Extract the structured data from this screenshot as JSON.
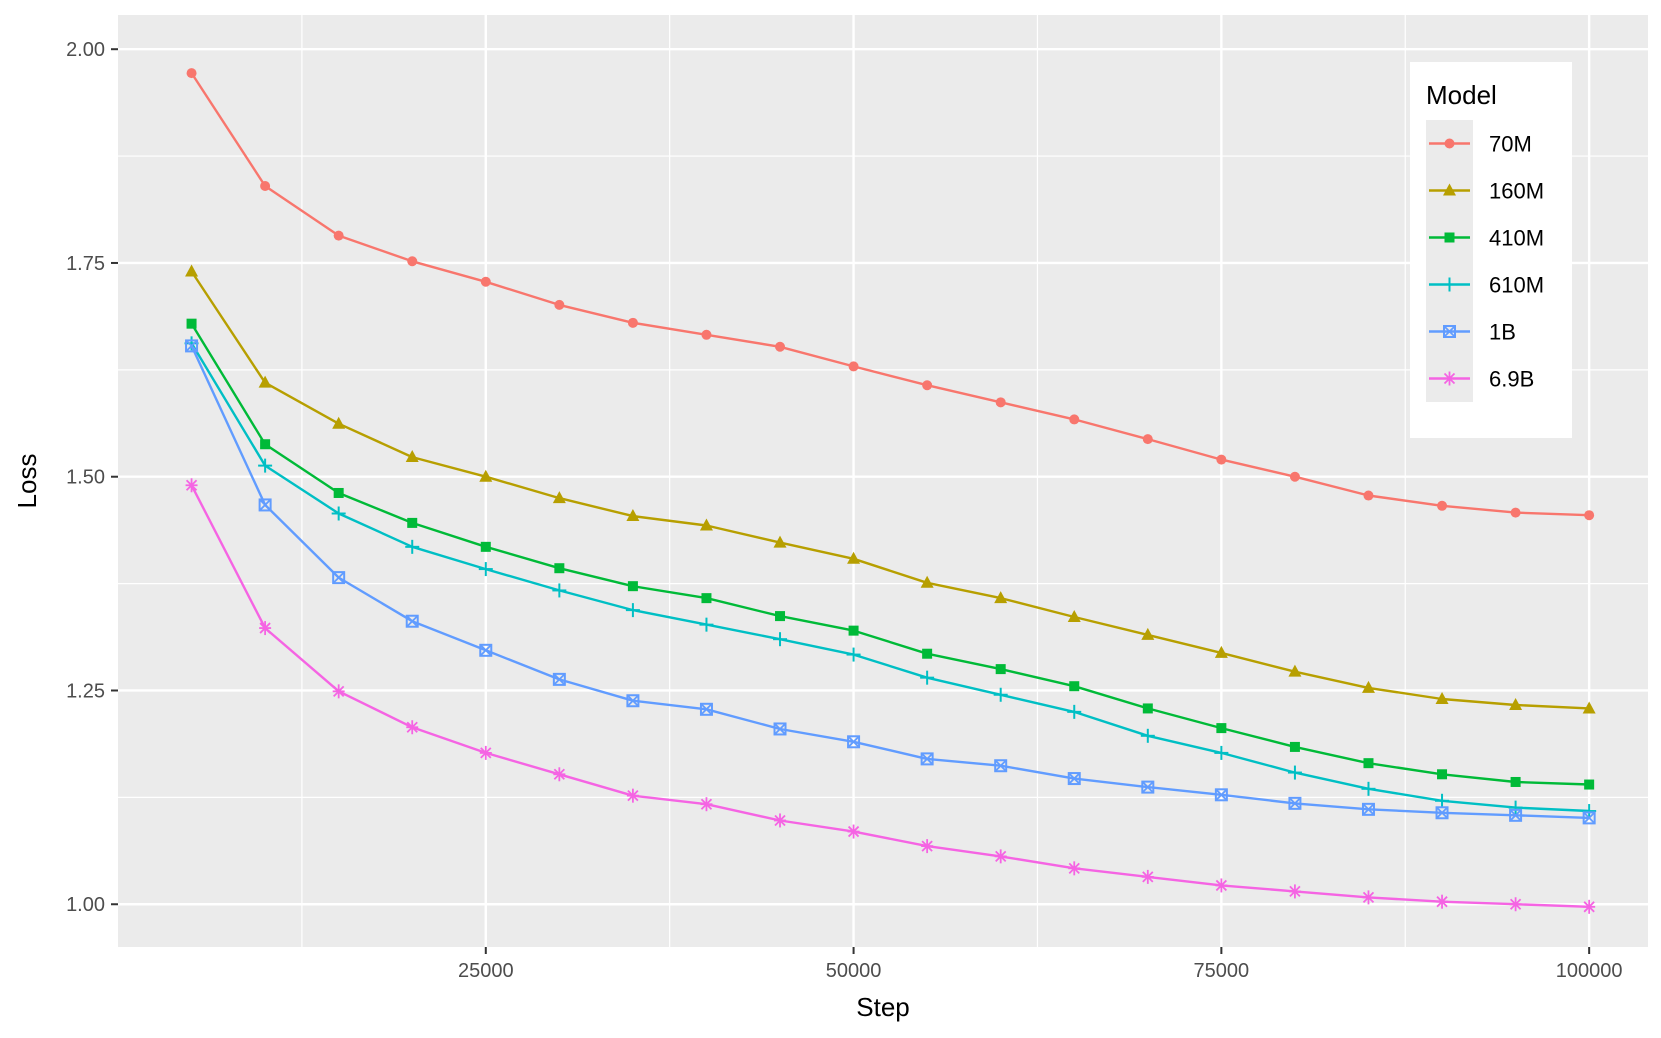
{
  "chart_data": {
    "type": "line",
    "xlabel": "Step",
    "ylabel": "Loss",
    "xlim": [
      0,
      104000
    ],
    "ylim": [
      0.95,
      2.04
    ],
    "x_ticks": [
      25000,
      50000,
      75000,
      100000
    ],
    "y_ticks": [
      1.0,
      1.25,
      1.5,
      1.75,
      2.0
    ],
    "grid": true,
    "background": "#ebebeb",
    "legend": {
      "title": "Model",
      "placement": "top-right"
    },
    "x": [
      5000,
      10000,
      15000,
      20000,
      25000,
      30000,
      35000,
      40000,
      45000,
      50000,
      55000,
      60000,
      65000,
      70000,
      75000,
      80000,
      85000,
      90000,
      95000,
      100000
    ],
    "series": [
      {
        "name": "70M",
        "color": "#F8766D",
        "marker": "circle",
        "values": [
          1.972,
          1.84,
          1.782,
          1.752,
          1.728,
          1.701,
          1.68,
          1.666,
          1.652,
          1.629,
          1.607,
          1.587,
          1.567,
          1.544,
          1.52,
          1.5,
          1.478,
          1.466,
          1.458,
          1.455
        ]
      },
      {
        "name": "160M",
        "color": "#B79F00",
        "marker": "triangle",
        "values": [
          1.74,
          1.61,
          1.562,
          1.523,
          1.5,
          1.475,
          1.454,
          1.443,
          1.423,
          1.404,
          1.376,
          1.358,
          1.336,
          1.315,
          1.294,
          1.272,
          1.253,
          1.24,
          1.233,
          1.229
        ]
      },
      {
        "name": "410M",
        "color": "#00BA38",
        "marker": "square",
        "values": [
          1.679,
          1.538,
          1.481,
          1.446,
          1.418,
          1.393,
          1.372,
          1.358,
          1.337,
          1.32,
          1.293,
          1.275,
          1.255,
          1.229,
          1.206,
          1.184,
          1.165,
          1.152,
          1.143,
          1.14
        ]
      },
      {
        "name": "610M",
        "color": "#00BFC4",
        "marker": "plus",
        "values": [
          1.656,
          1.513,
          1.457,
          1.418,
          1.392,
          1.367,
          1.344,
          1.327,
          1.31,
          1.292,
          1.265,
          1.245,
          1.225,
          1.197,
          1.177,
          1.154,
          1.135,
          1.121,
          1.113,
          1.109
        ]
      },
      {
        "name": "1B",
        "color": "#619CFF",
        "marker": "square-cross",
        "values": [
          1.653,
          1.467,
          1.382,
          1.331,
          1.297,
          1.263,
          1.238,
          1.228,
          1.205,
          1.19,
          1.17,
          1.162,
          1.147,
          1.137,
          1.128,
          1.118,
          1.111,
          1.107,
          1.104,
          1.101
        ]
      },
      {
        "name": "6.9B",
        "color": "#F564E3",
        "marker": "asterisk",
        "values": [
          1.49,
          1.323,
          1.249,
          1.207,
          1.177,
          1.152,
          1.127,
          1.117,
          1.098,
          1.085,
          1.068,
          1.056,
          1.042,
          1.032,
          1.022,
          1.015,
          1.008,
          1.003,
          1.0,
          0.997
        ]
      }
    ]
  }
}
